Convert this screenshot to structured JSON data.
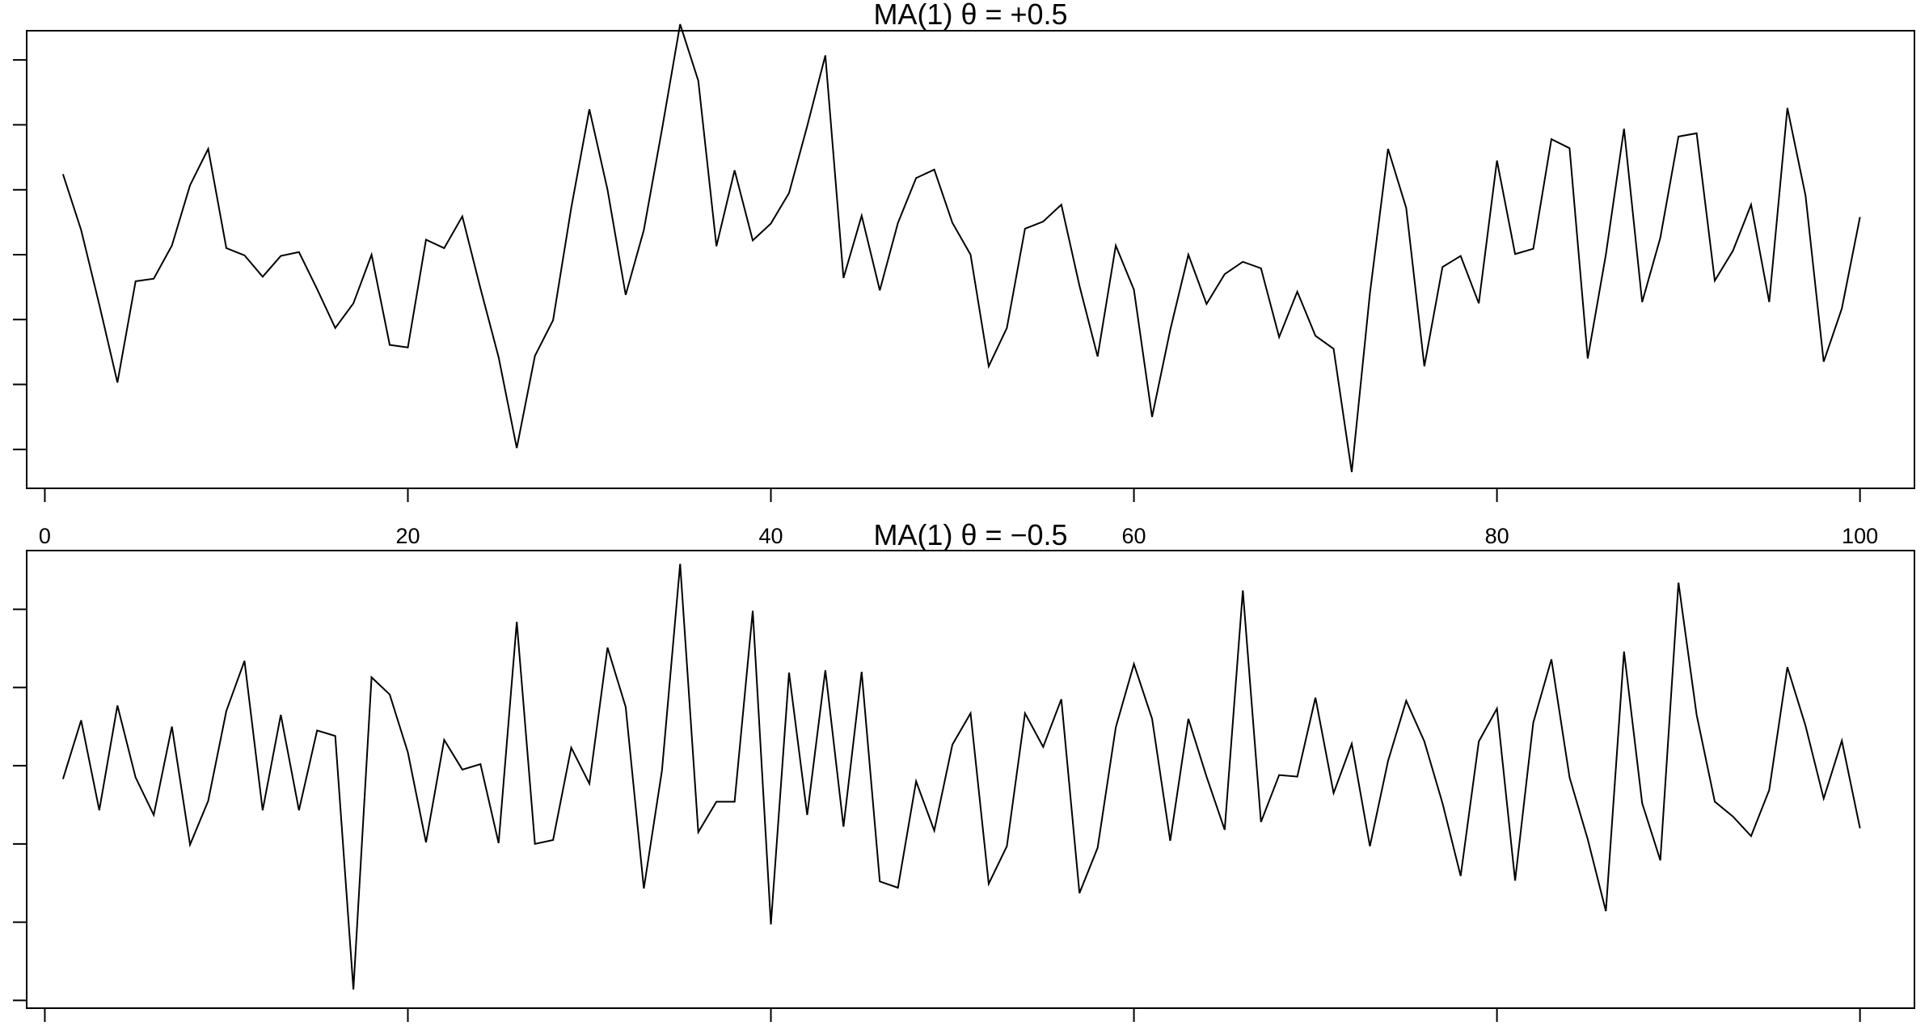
{
  "chart_data": [
    {
      "type": "line",
      "title": "MA(1)   θ = +0.5",
      "xlabel": "",
      "ylabel": "",
      "xlim": [
        -1,
        103
      ],
      "ylim": [
        -3.6,
        3.45
      ],
      "x_ticks": [
        0,
        20,
        40,
        60,
        80,
        100
      ],
      "y_ticks": [
        -3,
        -2,
        -1,
        0,
        1,
        2,
        3
      ],
      "grid": false,
      "x_tick_labels_shown": true,
      "y_tick_labels_shown": false,
      "series": [
        {
          "values": [
            1.24,
            0.38,
            -0.77,
            -1.97,
            -0.41,
            -0.37,
            0.14,
            1.07,
            1.63,
            0.1,
            -0.01,
            -0.34,
            -0.02,
            0.04,
            -0.53,
            -1.13,
            -0.75,
            0.0,
            -1.39,
            -1.43,
            0.23,
            0.1,
            0.59,
            -0.52,
            -1.58,
            -2.98,
            -1.56,
            -1.01,
            0.72,
            2.24,
            1.0,
            -0.62,
            0.38,
            1.93,
            3.55,
            2.68,
            0.13,
            1.3,
            0.22,
            0.48,
            0.95,
            1.98,
            3.07,
            -0.36,
            0.6,
            -0.55,
            0.49,
            1.18,
            1.31,
            0.49,
            0.0,
            -1.72,
            -1.13,
            0.4,
            0.51,
            0.77,
            -0.48,
            -1.57,
            0.14,
            -0.54,
            -2.5,
            -1.16,
            0.0,
            -0.76,
            -0.3,
            -0.11,
            -0.21,
            -1.27,
            -0.57,
            -1.25,
            -1.45,
            -3.35,
            -0.6,
            1.63,
            0.72,
            -1.72,
            -0.19,
            -0.02,
            -0.75,
            1.45,
            0.01,
            0.09,
            1.78,
            1.64,
            -1.6,
            0.0,
            1.94,
            -0.73,
            0.26,
            1.82,
            1.87,
            -0.4,
            0.06,
            0.77,
            -0.73,
            2.26,
            0.91,
            -1.65,
            -0.83,
            0.58
          ]
        }
      ]
    },
    {
      "type": "line",
      "title": "MA(1)   θ = −0.5",
      "xlabel": "",
      "ylabel": "",
      "xlim": [
        -1,
        103
      ],
      "ylim": [
        -3.1,
        2.75
      ],
      "x_ticks": [
        0,
        20,
        40,
        60,
        80,
        100
      ],
      "y_ticks": [
        -3,
        -2,
        -1,
        0,
        1,
        2
      ],
      "grid": false,
      "x_tick_labels_shown": false,
      "y_tick_labels_shown": false,
      "series": [
        {
          "values": [
            -0.17,
            0.58,
            -0.57,
            0.77,
            -0.15,
            -0.63,
            0.5,
            -1.01,
            -0.45,
            0.7,
            1.34,
            -0.57,
            0.65,
            -0.57,
            0.45,
            0.38,
            -2.86,
            1.13,
            0.91,
            0.17,
            -0.98,
            0.33,
            -0.05,
            0.02,
            -0.99,
            1.84,
            -1.0,
            -0.95,
            0.23,
            -0.23,
            1.51,
            0.75,
            -1.57,
            -0.06,
            2.58,
            -0.85,
            -0.46,
            -0.46,
            1.98,
            -2.03,
            1.19,
            -0.63,
            1.22,
            -0.78,
            1.2,
            -1.48,
            -1.56,
            -0.2,
            -0.83,
            0.27,
            0.67,
            -1.51,
            -1.03,
            0.67,
            0.24,
            0.85,
            -1.63,
            -1.05,
            0.49,
            1.3,
            0.6,
            -0.96,
            0.6,
            -0.14,
            -0.82,
            2.24,
            -0.72,
            -0.12,
            -0.14,
            0.87,
            -0.35,
            0.28,
            -1.03,
            0.06,
            0.83,
            0.31,
            -0.48,
            -1.41,
            0.31,
            0.73,
            -1.47,
            0.55,
            1.36,
            -0.15,
            -0.94,
            -1.86,
            1.46,
            -0.48,
            -1.21,
            2.34,
            0.65,
            -0.46,
            -0.65,
            -0.9,
            -0.31,
            1.26,
            0.51,
            -0.42,
            0.32,
            -0.8
          ]
        }
      ]
    }
  ]
}
